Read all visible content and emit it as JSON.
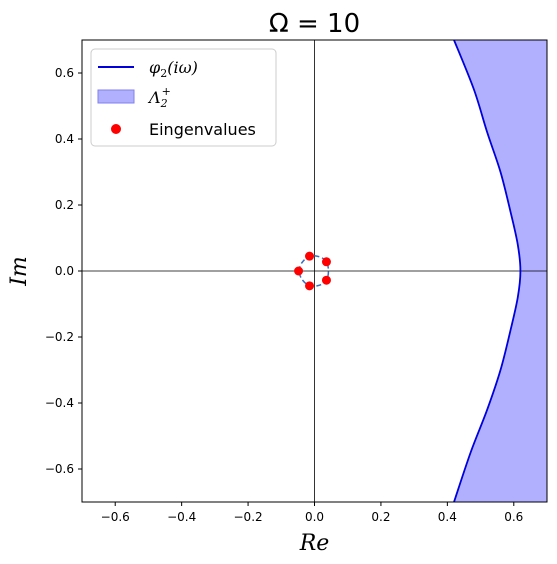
{
  "chart_data": {
    "type": "scatter",
    "title": "Ω = 10",
    "xlabel": "Re",
    "ylabel": "Im",
    "xlim": [
      -0.7,
      0.7
    ],
    "ylim": [
      -0.7,
      0.7
    ],
    "xticks": [
      -0.6,
      -0.4,
      -0.2,
      0.0,
      0.2,
      0.4,
      0.6
    ],
    "yticks": [
      -0.6,
      -0.4,
      -0.2,
      0.0,
      0.2,
      0.4,
      0.6
    ],
    "xtick_labels": [
      "−0.6",
      "−0.4",
      "−0.2",
      "0.0",
      "0.2",
      "0.4",
      "0.6"
    ],
    "ytick_labels": [
      "−0.6",
      "−0.4",
      "−0.2",
      "0.0",
      "0.2",
      "0.4",
      "0.6"
    ],
    "legend_position": "upper-left",
    "legend": {
      "curve": {
        "base": "φ",
        "sub": "2",
        "arg": "(iω)"
      },
      "region": {
        "base": "Λ",
        "sub": "2",
        "sup": "+"
      },
      "points": "Eingenvalues"
    },
    "boundary_curve": {
      "color": "#0000dd",
      "points": [
        {
          "x": 0.42,
          "y": -0.7
        },
        {
          "x": 0.47,
          "y": -0.55
        },
        {
          "x": 0.52,
          "y": -0.42
        },
        {
          "x": 0.56,
          "y": -0.3
        },
        {
          "x": 0.59,
          "y": -0.18
        },
        {
          "x": 0.612,
          "y": -0.08
        },
        {
          "x": 0.62,
          "y": 0.0
        },
        {
          "x": 0.612,
          "y": 0.08
        },
        {
          "x": 0.59,
          "y": 0.18
        },
        {
          "x": 0.56,
          "y": 0.3
        },
        {
          "x": 0.52,
          "y": 0.42
        },
        {
          "x": 0.48,
          "y": 0.55
        },
        {
          "x": 0.42,
          "y": 0.7
        }
      ]
    },
    "region_fill": "#b0b0ff",
    "inner_curve": {
      "color": "#3a6fbf",
      "points": [
        {
          "x": -0.048,
          "y": 0.0
        },
        {
          "x": -0.038,
          "y": 0.025
        },
        {
          "x": -0.015,
          "y": 0.045
        },
        {
          "x": 0.015,
          "y": 0.043
        },
        {
          "x": 0.036,
          "y": 0.028
        },
        {
          "x": 0.042,
          "y": 0.0
        },
        {
          "x": 0.036,
          "y": -0.028
        },
        {
          "x": 0.015,
          "y": -0.043
        },
        {
          "x": -0.015,
          "y": -0.045
        },
        {
          "x": -0.038,
          "y": -0.025
        },
        {
          "x": -0.048,
          "y": 0.0
        }
      ]
    },
    "eigenvalues": {
      "color": "#ff0000",
      "points": [
        {
          "x": -0.048,
          "y": 0.0
        },
        {
          "x": -0.015,
          "y": 0.045
        },
        {
          "x": 0.036,
          "y": 0.028
        },
        {
          "x": 0.036,
          "y": -0.028
        },
        {
          "x": -0.015,
          "y": -0.045
        }
      ]
    }
  }
}
